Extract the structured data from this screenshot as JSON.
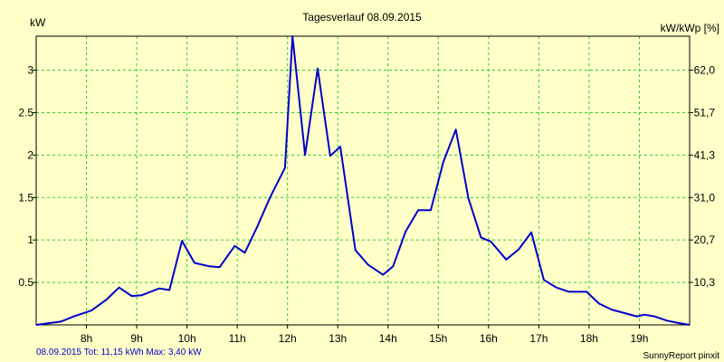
{
  "colors": {
    "background": "#ffffc8",
    "grid": "#33cc33",
    "line": "#0000cc",
    "axis": "#000000",
    "footer_left": "#0000cc"
  },
  "chart_data": {
    "type": "line",
    "title": "Tagesverlauf 08.09.2015",
    "ylabel_left": "kW",
    "ylabel_right": "kW/kWp [%]",
    "xlim": [
      7.0,
      20.0
    ],
    "ylim": [
      0,
      3.4
    ],
    "grid": true,
    "x_ticks": [
      8,
      9,
      10,
      11,
      12,
      13,
      14,
      15,
      16,
      17,
      18,
      19
    ],
    "x_tick_labels": [
      "8h",
      "9h",
      "10h",
      "11h",
      "12h",
      "13h",
      "14h",
      "15h",
      "16h",
      "17h",
      "18h",
      "19h"
    ],
    "y_left_ticks": [
      0.5,
      1,
      1.5,
      2,
      2.5,
      3
    ],
    "y_left_tick_labels": [
      "0.5",
      "1",
      "1.5",
      "2",
      "2.5",
      "3"
    ],
    "y_right_tick_labels": [
      "10,3",
      "20,7",
      "31,0",
      "41,3",
      "51,7",
      "62,0"
    ],
    "series": [
      {
        "x": [
          7.0,
          7.5,
          7.75,
          8.1,
          8.4,
          8.65,
          8.9,
          9.1,
          9.45,
          9.65,
          9.9,
          10.15,
          10.45,
          10.65,
          10.95,
          11.15,
          11.4,
          11.65,
          11.95,
          12.1,
          12.35,
          12.6,
          12.85,
          13.05,
          13.35,
          13.6,
          13.9,
          14.1,
          14.35,
          14.6,
          14.85,
          15.1,
          15.35,
          15.6,
          15.85,
          16.05,
          16.35,
          16.6,
          16.85,
          17.1,
          17.35,
          17.6,
          17.95,
          18.2,
          18.45,
          18.7,
          18.95,
          19.1,
          19.3,
          19.55,
          19.8,
          20.0
        ],
        "y": [
          0.0,
          0.04,
          0.1,
          0.17,
          0.3,
          0.44,
          0.34,
          0.35,
          0.43,
          0.41,
          0.99,
          0.73,
          0.69,
          0.68,
          0.93,
          0.85,
          1.16,
          1.5,
          1.85,
          3.4,
          2.0,
          3.02,
          1.99,
          2.1,
          0.88,
          0.71,
          0.59,
          0.69,
          1.1,
          1.35,
          1.35,
          1.92,
          2.3,
          1.49,
          1.03,
          0.98,
          0.77,
          0.89,
          1.09,
          0.53,
          0.44,
          0.39,
          0.39,
          0.25,
          0.18,
          0.14,
          0.1,
          0.12,
          0.1,
          0.05,
          0.02,
          0.0
        ]
      }
    ]
  },
  "footer": {
    "left": "08.09.2015 Tot: 11,15 kWh Max: 3,40 kW",
    "right": "SunnyReport pinxit"
  }
}
